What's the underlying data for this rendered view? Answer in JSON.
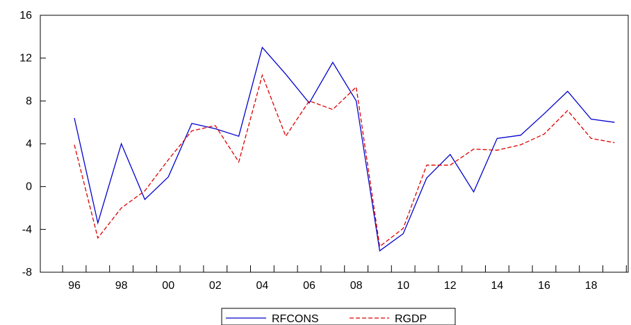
{
  "chart_data": {
    "type": "line",
    "title": "",
    "xlabel": "",
    "ylabel": "",
    "x": [
      1996,
      1997,
      1998,
      1999,
      2000,
      2001,
      2002,
      2003,
      2004,
      2005,
      2006,
      2007,
      2008,
      2009,
      2010,
      2011,
      2012,
      2013,
      2014,
      2015,
      2016,
      2017,
      2018,
      2019
    ],
    "x_tick_labels": [
      "96",
      "98",
      "00",
      "02",
      "04",
      "06",
      "08",
      "10",
      "12",
      "14",
      "16",
      "18"
    ],
    "x_tick_label_years": [
      1996,
      1998,
      2000,
      2002,
      2004,
      2006,
      2008,
      2010,
      2012,
      2014,
      2016,
      2018
    ],
    "ylim": [
      -8,
      16
    ],
    "y_ticks": [
      -8,
      -4,
      0,
      4,
      8,
      12,
      16
    ],
    "y_tick_labels": [
      "-8",
      "-4",
      "0",
      "4",
      "8",
      "12",
      "16"
    ],
    "grid": false,
    "legend_position": "bottom-center",
    "series": [
      {
        "name": "RFCONS",
        "color": "#0000cc",
        "dash": "solid",
        "values": [
          6.4,
          -3.4,
          4.0,
          -1.2,
          0.9,
          5.9,
          5.4,
          4.7,
          13.0,
          10.5,
          7.8,
          11.6,
          8.0,
          -6.0,
          -4.4,
          0.8,
          3.0,
          -0.5,
          4.5,
          4.8,
          6.8,
          8.9,
          6.3,
          6.0
        ]
      },
      {
        "name": "RGDP",
        "color": "#dd0000",
        "dash": "dashed",
        "values": [
          3.9,
          -4.8,
          -2.0,
          -0.4,
          2.5,
          5.2,
          5.7,
          2.3,
          10.4,
          4.7,
          8.0,
          7.2,
          9.3,
          -5.6,
          -3.9,
          2.0,
          2.0,
          3.5,
          3.4,
          3.9,
          4.9,
          7.1,
          4.5,
          4.1
        ]
      }
    ]
  }
}
